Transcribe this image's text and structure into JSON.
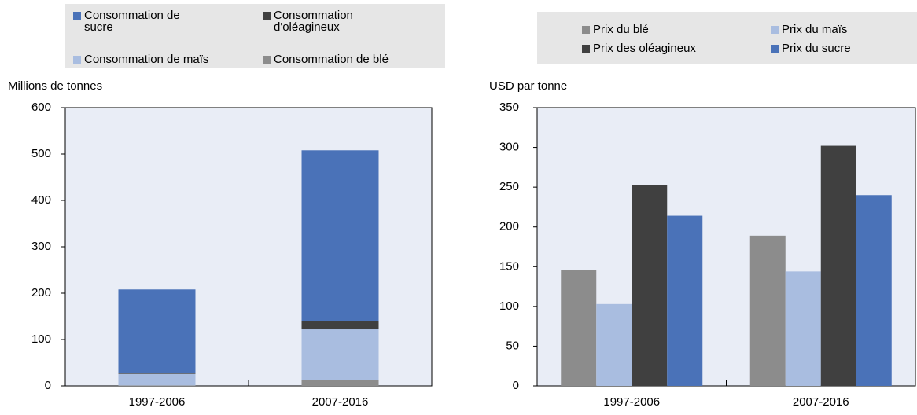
{
  "chart_data": [
    {
      "type": "bar",
      "stacked": true,
      "ylabel": "Millions de tonnes",
      "categories": [
        "1997-2006",
        "2007-2016"
      ],
      "series": [
        {
          "name": "Consommation de blé",
          "color": "#8c8c8c",
          "values": [
            1,
            12
          ]
        },
        {
          "name": "Consommation de maïs",
          "color": "#a9bde0",
          "values": [
            25,
            110
          ]
        },
        {
          "name": "Consommation d'oléagineux",
          "color": "#404040",
          "values": [
            2,
            17
          ]
        },
        {
          "name": "Consommation de sucre",
          "color": "#4a72b8",
          "values": [
            180,
            369
          ]
        }
      ],
      "ylim": [
        0,
        600
      ],
      "yticks": [
        0,
        100,
        200,
        300,
        400,
        500,
        600
      ]
    },
    {
      "type": "bar",
      "stacked": false,
      "ylabel": "USD par tonne",
      "categories": [
        "1997-2006",
        "2007-2016"
      ],
      "series": [
        {
          "name": "Prix du blé",
          "color": "#8c8c8c",
          "values": [
            146,
            189
          ]
        },
        {
          "name": "Prix du maïs",
          "color": "#a9bde0",
          "values": [
            103,
            144
          ]
        },
        {
          "name": "Prix des oléagineux",
          "color": "#404040",
          "values": [
            253,
            302
          ]
        },
        {
          "name": "Prix du sucre",
          "color": "#4a72b8",
          "values": [
            214,
            240
          ]
        }
      ],
      "ylim": [
        0,
        350
      ],
      "yticks": [
        0,
        50,
        100,
        150,
        200,
        250,
        300,
        350
      ]
    }
  ]
}
